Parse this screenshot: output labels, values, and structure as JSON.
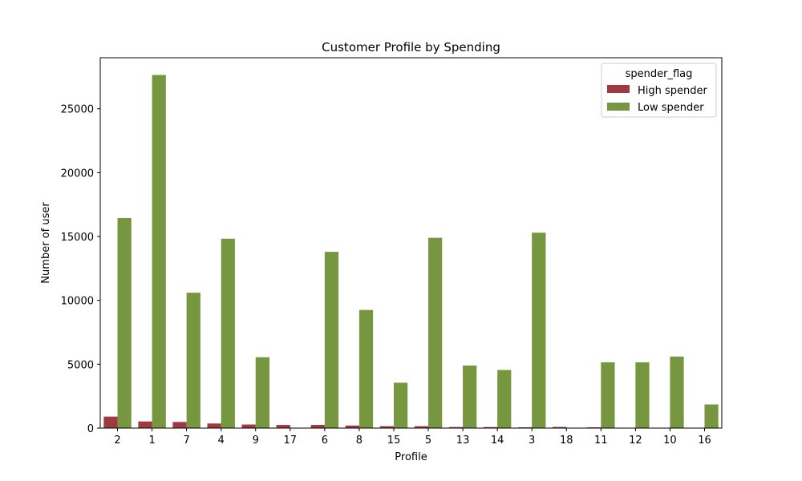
{
  "chart_data": {
    "type": "bar",
    "title": "Customer Profile by Spending",
    "xlabel": "Profile",
    "ylabel": "Number of user",
    "categories": [
      "2",
      "1",
      "7",
      "4",
      "9",
      "17",
      "6",
      "8",
      "15",
      "5",
      "13",
      "14",
      "3",
      "18",
      "11",
      "12",
      "10",
      "16"
    ],
    "series": [
      {
        "name": "High spender",
        "color": "#a03a42",
        "values": [
          900,
          520,
          480,
          360,
          280,
          250,
          250,
          200,
          150,
          150,
          80,
          80,
          60,
          90,
          60,
          30,
          30,
          10
        ]
      },
      {
        "name": "Low spender",
        "color": "#76963f",
        "values": [
          16450,
          27650,
          10600,
          14830,
          5550,
          0,
          13800,
          9250,
          3550,
          14900,
          4900,
          4550,
          15300,
          0,
          5150,
          5150,
          5600,
          1850
        ]
      }
    ],
    "ylim": [
      0,
      29000
    ],
    "yticks": [
      0,
      5000,
      10000,
      15000,
      20000,
      25000
    ],
    "legend": {
      "title": "spender_flag",
      "placement": "top-right"
    },
    "grid": false
  }
}
